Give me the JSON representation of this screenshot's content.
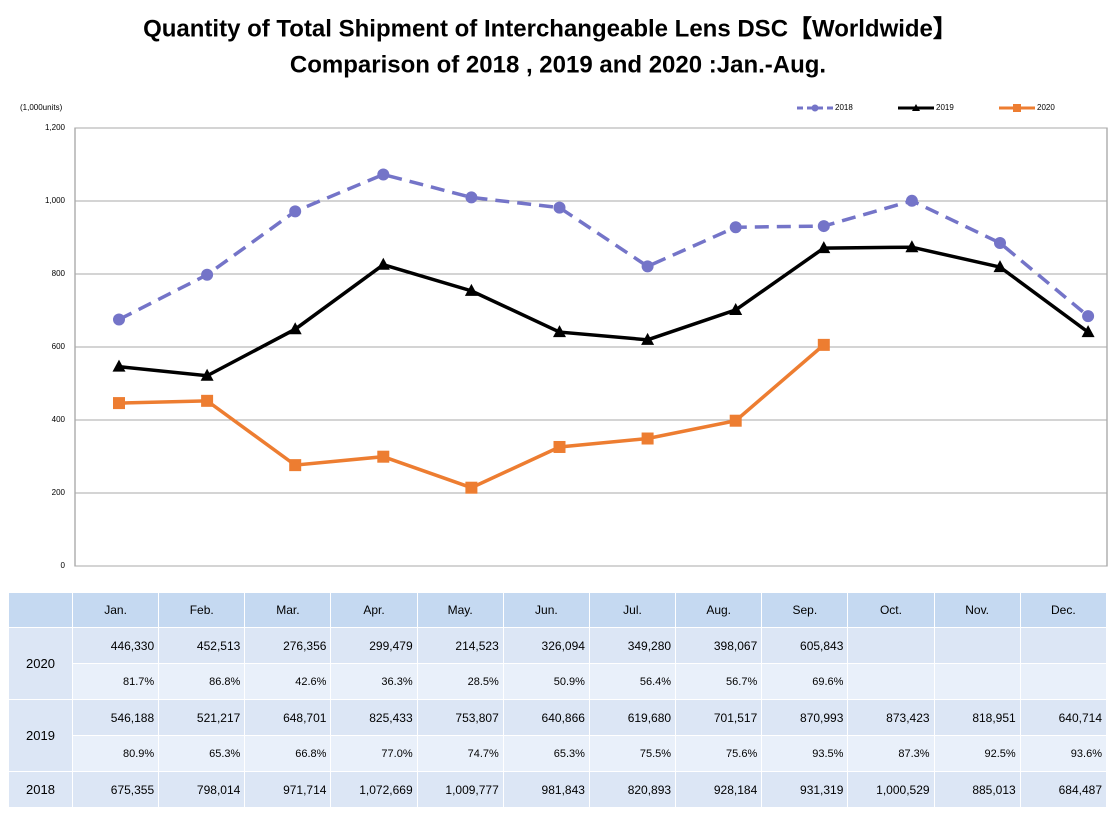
{
  "chart_data": {
    "type": "line",
    "title": "Quantity of Total Shipment of Interchangeable Lens DSC【Worldwide】",
    "subtitle": "Comparison of 2018 , 2019 and 2020 :Jan.-Aug.",
    "y_label": "(1,000units)",
    "categories": [
      "Jan.",
      "Feb.",
      "Mar.",
      "Apr.",
      "May.",
      "Jun.",
      "Jul.",
      "Aug.",
      "Sep.",
      "Oct.",
      "Nov.",
      "Dec."
    ],
    "series": [
      {
        "name": "2018",
        "color": "#7474c8",
        "dash": true,
        "marker": "circle",
        "values": [
          675.355,
          798.014,
          971.714,
          1072.669,
          1009.777,
          981.843,
          820.893,
          928.184,
          931.319,
          1000.529,
          885.013,
          684.487
        ]
      },
      {
        "name": "2019",
        "color": "#000000",
        "dash": false,
        "marker": "triangle",
        "values": [
          546.188,
          521.217,
          648.701,
          825.433,
          753.807,
          640.866,
          619.68,
          701.517,
          870.993,
          873.423,
          818.951,
          640.714
        ]
      },
      {
        "name": "2020",
        "color": "#ed7d31",
        "dash": false,
        "marker": "square",
        "values": [
          446.33,
          452.513,
          276.356,
          299.479,
          214.523,
          326.094,
          349.28,
          398.067,
          605.843,
          null,
          null,
          null
        ]
      }
    ],
    "ylim": [
      0,
      1200
    ],
    "yticks": [
      0,
      200,
      400,
      600,
      800,
      {
        "value": 1000,
        "label": "1,000"
      },
      {
        "value": 1200,
        "label": "1,200"
      }
    ],
    "grid": true,
    "legend": "top-right"
  },
  "table": {
    "rows": [
      {
        "label": "2020",
        "lines": [
          [
            "446,330",
            "452,513",
            "276,356",
            "299,479",
            "214,523",
            "326,094",
            "349,280",
            "398,067",
            "605,843"
          ],
          [
            "81.7%",
            "86.8%",
            "42.6%",
            "36.3%",
            "28.5%",
            "50.9%",
            "56.4%",
            "56.7%",
            "69.6%"
          ]
        ]
      },
      {
        "label": "2019",
        "lines": [
          [
            "546,188",
            "521,217",
            "648,701",
            "825,433",
            "753,807",
            "640,866",
            "619,680",
            "701,517",
            "870,993",
            "873,423",
            "818,951",
            "640,714"
          ],
          [
            "80.9%",
            "65.3%",
            "66.8%",
            "77.0%",
            "74.7%",
            "65.3%",
            "75.5%",
            "75.6%",
            "93.5%",
            "87.3%",
            "92.5%",
            "93.6%"
          ]
        ]
      },
      {
        "label": "2018",
        "lines": [
          [
            "675,355",
            "798,014",
            "971,714",
            "1,072,669",
            "1,009,777",
            "981,843",
            "820,893",
            "928,184",
            "931,319",
            "1,000,529",
            "885,013",
            "684,487"
          ]
        ]
      }
    ]
  }
}
